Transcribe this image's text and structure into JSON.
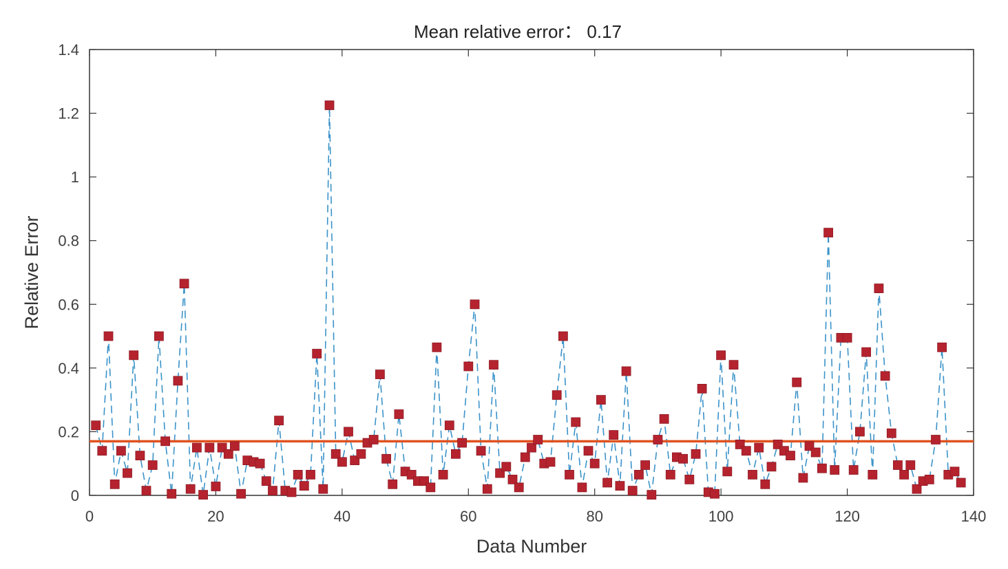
{
  "chart_data": {
    "type": "line",
    "title": "Mean relative error： 0.17",
    "xlabel": "Data Number",
    "ylabel": "Relative Error",
    "xlim": [
      0,
      140
    ],
    "ylim": [
      0,
      1.4
    ],
    "x_ticks": [
      "0",
      "20",
      "40",
      "60",
      "80",
      "100",
      "120",
      "140"
    ],
    "y_ticks": [
      "0",
      "0.2",
      "0.4",
      "0.6",
      "0.8",
      "1",
      "1.2",
      "1.4"
    ],
    "mean_line": 0.17,
    "grid": false,
    "colors": {
      "series": "#3a92c9",
      "marker": "#b5232e",
      "mean": "#e0521f",
      "axis": "#333333"
    },
    "series": [
      {
        "line_style": "dashed",
        "marker": "square",
        "values": [
          0.22,
          0.14,
          0.5,
          0.035,
          0.14,
          0.07,
          0.44,
          0.125,
          0.015,
          0.095,
          0.5,
          0.17,
          0.005,
          0.36,
          0.665,
          0.02,
          0.15,
          0.002,
          0.15,
          0.028,
          0.15,
          0.13,
          0.155,
          0.005,
          0.11,
          0.105,
          0.1,
          0.045,
          0.015,
          0.235,
          0.015,
          0.01,
          0.065,
          0.03,
          0.065,
          0.445,
          0.02,
          1.225,
          0.13,
          0.105,
          0.2,
          0.11,
          0.13,
          0.165,
          0.175,
          0.38,
          0.115,
          0.035,
          0.255,
          0.075,
          0.065,
          0.045,
          0.045,
          0.025,
          0.465,
          0.065,
          0.22,
          0.13,
          0.165,
          0.405,
          0.6,
          0.14,
          0.02,
          0.41,
          0.07,
          0.09,
          0.05,
          0.025,
          0.12,
          0.15,
          0.175,
          0.1,
          0.105,
          0.315,
          0.5,
          0.065,
          0.23,
          0.025,
          0.14,
          0.1,
          0.3,
          0.04,
          0.19,
          0.03,
          0.39,
          0.015,
          0.065,
          0.095,
          0.002,
          0.175,
          0.24,
          0.065,
          0.12,
          0.115,
          0.05,
          0.13,
          0.335,
          0.01,
          0.005,
          0.44,
          0.075,
          0.41,
          0.16,
          0.14,
          0.065,
          0.15,
          0.035,
          0.09,
          0.16,
          0.14,
          0.125,
          0.355,
          0.055,
          0.155,
          0.135,
          0.085,
          0.825,
          0.08,
          0.495,
          0.495,
          0.08,
          0.2,
          0.45,
          0.065,
          0.65,
          0.375,
          0.195,
          0.095,
          0.065,
          0.095,
          0.02,
          0.045,
          0.05,
          0.175,
          0.465,
          0.065,
          0.075,
          0.04
        ]
      }
    ]
  }
}
